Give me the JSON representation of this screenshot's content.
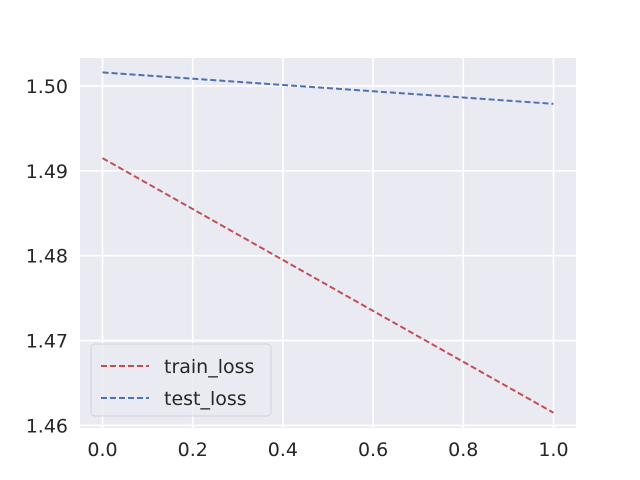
{
  "chart_data": {
    "type": "line",
    "title": "",
    "xlabel": "",
    "ylabel": "",
    "x": [
      0.0,
      1.0
    ],
    "xlim": [
      -0.05,
      1.05
    ],
    "ylim": [
      1.4597,
      1.5033
    ],
    "xticks": [
      0.0,
      0.2,
      0.4,
      0.6,
      0.8,
      1.0
    ],
    "xtick_labels": [
      "0.0",
      "0.2",
      "0.4",
      "0.6",
      "0.8",
      "1.0"
    ],
    "yticks": [
      1.46,
      1.47,
      1.48,
      1.49,
      1.5
    ],
    "ytick_labels": [
      "1.46",
      "1.47",
      "1.48",
      "1.49",
      "1.50"
    ],
    "grid": true,
    "legend_position": "lower-left",
    "series": [
      {
        "name": "train_loss",
        "values": [
          1.4915,
          1.4615
        ],
        "color": "#c44e52",
        "style": "dashed"
      },
      {
        "name": "test_loss",
        "values": [
          1.5016,
          1.4979
        ],
        "color": "#4c72b0",
        "style": "dashed"
      }
    ],
    "background": "#eaeaf2",
    "grid_color": "#ffffff"
  }
}
